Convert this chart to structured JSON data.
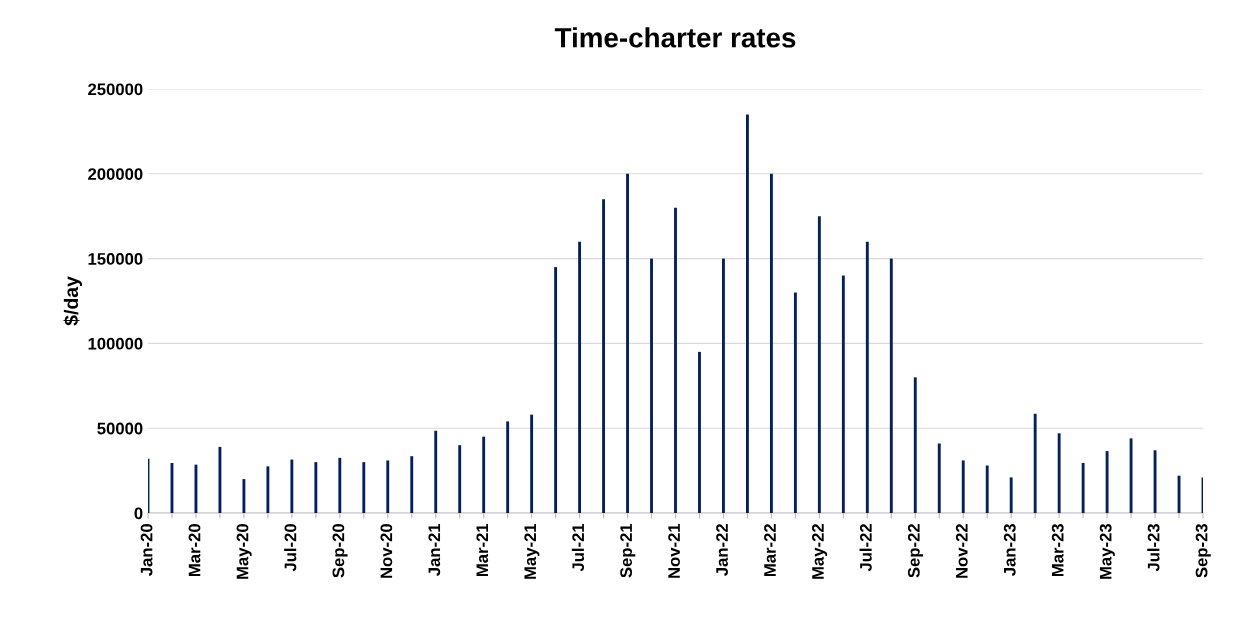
{
  "chart_data": {
    "type": "bar",
    "title": "Time-charter rates",
    "ylabel": "$/day",
    "categories": [
      "Jan-20",
      null,
      "Mar-20",
      null,
      "May-20",
      null,
      "Jul-20",
      null,
      "Sep-20",
      null,
      "Nov-20",
      null,
      "Jan-21",
      null,
      "Mar-21",
      null,
      "May-21",
      null,
      "Jul-21",
      null,
      "Sep-21",
      null,
      "Nov-21",
      null,
      "Jan-22",
      null,
      "Mar-22",
      null,
      "May-22",
      null,
      "Jul-22",
      null,
      "Sep-22",
      null,
      "Nov-22",
      null,
      "Jan-23",
      null,
      "Mar-23",
      null,
      "May-23",
      null,
      "Jul-23",
      null,
      "Sep-23"
    ],
    "values": [
      32000,
      29500,
      28500,
      39000,
      20000,
      27500,
      31500,
      30000,
      32500,
      30000,
      31000,
      33500,
      48500,
      40000,
      45000,
      54000,
      58000,
      145000,
      160000,
      185000,
      200000,
      150000,
      180000,
      95000,
      150000,
      235000,
      200000,
      130000,
      175000,
      140000,
      160000,
      150000,
      80000,
      41000,
      31000,
      28000,
      21000,
      58500,
      47000,
      29500,
      36500,
      44000,
      37000,
      22000,
      21000
    ],
    "color": "#002060",
    "ylim": [
      0,
      250000
    ],
    "yticks": [
      0,
      50000,
      100000,
      150000,
      200000,
      250000
    ],
    "grid": "y"
  }
}
